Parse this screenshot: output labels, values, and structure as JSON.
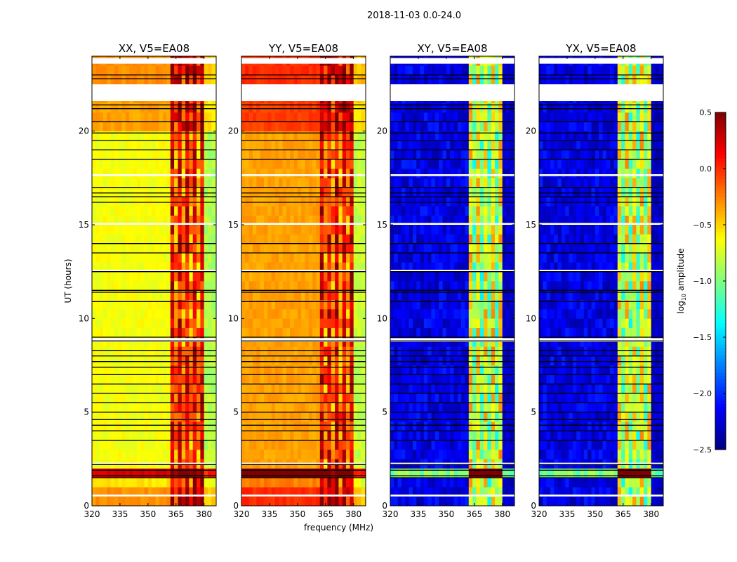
{
  "chart_data": {
    "type": "heatmap",
    "suptitle": "2018-11-03 0.0-24.0",
    "xlabel": "frequency (MHz)",
    "ylabel": "UT (hours)",
    "xlim": [
      320,
      386.5
    ],
    "ylim": [
      0,
      24
    ],
    "xticks": [
      "320",
      "335",
      "350",
      "365",
      "380"
    ],
    "xtick_values": [
      320,
      335,
      350,
      365,
      380
    ],
    "yticks": [
      "0",
      "5",
      "10",
      "15",
      "20"
    ],
    "ytick_values": [
      0,
      5,
      10,
      15,
      20
    ],
    "colormap": "jet",
    "colorbar": {
      "label_prefix": "log",
      "label_sub": "10",
      "label_suffix": " amplitude",
      "range": [
        -2.5,
        0.5
      ],
      "ticks": [
        "0.5",
        "0.0",
        "−0.5",
        "−1.0",
        "−1.5",
        "−2.0",
        "−2.5"
      ],
      "tick_values": [
        0.5,
        0.0,
        -0.5,
        -1.0,
        -1.5,
        -2.0,
        -2.5
      ]
    },
    "rfi_band_mhz": [
      362,
      380
    ],
    "time_bin_hours": 0.5,
    "freq_bin_mhz": 2,
    "panels": [
      {
        "title": "XX, V5=EA08",
        "background": -0.65,
        "rfi": 0.05,
        "edge": -0.85
      },
      {
        "title": "YY, V5=EA08",
        "background": -0.35,
        "rfi": 0.1,
        "edge": -0.8
      },
      {
        "title": "XY, V5=EA08",
        "background": -2.2,
        "rfi": -0.7,
        "edge": -2.3
      },
      {
        "title": "YX, V5=EA08",
        "background": -2.2,
        "rfi": -0.7,
        "edge": -2.3
      }
    ],
    "time_offsets": [
      {
        "start": 0,
        "end": 1.0,
        "offset": 0.35
      },
      {
        "start": 1.0,
        "end": 1.5,
        "offset": 0.1
      },
      {
        "start": 1.5,
        "end": 2.0,
        "offset": 0.9
      },
      {
        "start": 20.0,
        "end": 21.6,
        "offset": 0.3
      },
      {
        "start": 22.5,
        "end": 23.6,
        "offset": 0.35
      }
    ],
    "flagged_gaps_hours": [
      [
        21.6,
        22.5
      ],
      [
        23.6,
        23.9
      ],
      [
        8.75,
        8.95
      ],
      [
        2.2,
        2.3
      ],
      [
        0.5,
        0.6
      ],
      [
        12.5,
        12.6
      ],
      [
        15.0,
        15.1
      ],
      [
        17.6,
        17.7
      ]
    ],
    "flag_lines_hours": [
      23.0,
      22.8,
      21.4,
      21.2,
      20.5,
      19.9,
      19.5,
      19.0,
      18.5,
      17.0,
      16.7,
      16.5,
      16.2,
      14.0,
      13.5,
      12.5,
      11.5,
      11.4,
      10.9,
      9.0,
      8.8,
      8.3,
      8.0,
      7.7,
      7.4,
      7.0,
      6.5,
      6.0,
      5.5,
      5.0,
      4.6,
      4.3,
      4.0,
      3.5,
      2.2,
      1.9,
      1.6,
      1.5
    ]
  }
}
